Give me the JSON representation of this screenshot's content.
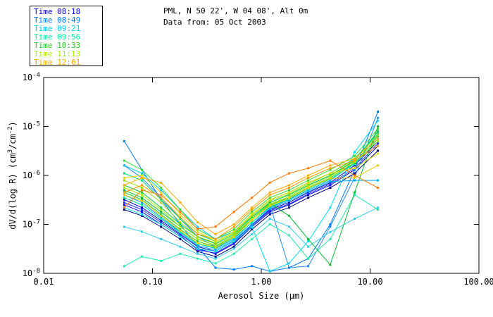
{
  "header": {},
  "chart_data": {
    "type": "line",
    "title": "PML, N 50 22', W 04 08', Alt 0m",
    "subtitle": "Data from: 05 Oct 2003",
    "xlabel": "Aerosol Size (μm)",
    "ylabel_parts": [
      {
        "t": "dV/d(log R) (cm"
      },
      {
        "sup": "3"
      },
      {
        "t": "/cm"
      },
      {
        "sup": "-2"
      },
      {
        "t": ")"
      }
    ],
    "xlim": [
      0.01,
      100
    ],
    "ylim": [
      1e-08,
      0.0001
    ],
    "x_scale": "log",
    "y_scale": "log",
    "grid": false,
    "x_ticks": [
      {
        "value": 0.01,
        "label": "0.01"
      },
      {
        "value": 0.1,
        "label": "0.10"
      },
      {
        "value": 1.0,
        "label": "1.00"
      },
      {
        "value": 10.0,
        "label": "10.00"
      },
      {
        "value": 100.0,
        "label": "100.00"
      }
    ],
    "y_tick_exponents": [
      -4,
      -5,
      -6,
      -7,
      -8
    ],
    "legend": {
      "position": "top-left",
      "items": [
        {
          "label": "Time 08:18",
          "color": "#0000EE"
        },
        {
          "label": "Time 08:49",
          "color": "#0077FF"
        },
        {
          "label": "Time 09:21",
          "color": "#00CCFF"
        },
        {
          "label": "Time 09:56",
          "color": "#00EE99"
        },
        {
          "label": "Time 10:33",
          "color": "#22CC22"
        },
        {
          "label": "Time 11:13",
          "color": "#AAEE00"
        },
        {
          "label": "Time 12:01",
          "color": "#FFAA00"
        }
      ]
    },
    "x": [
      0.055,
      0.08,
      0.12,
      0.18,
      0.26,
      0.38,
      0.56,
      0.82,
      1.2,
      1.8,
      2.7,
      4.3,
      7.2,
      11.8
    ],
    "series": [
      {
        "time": "08:18",
        "color": "#0000EE",
        "values": [
          2.5e-07,
          1.8e-07,
          1e-07,
          5.6e-08,
          3.2e-08,
          2.5e-08,
          4e-08,
          8.9e-08,
          1.8e-07,
          2.5e-07,
          4e-07,
          6.3e-07,
          1.3e-06,
          4e-06
        ]
      },
      {
        "time": "08:18",
        "color": "#0000BB",
        "values": [
          3.2e-07,
          2.2e-07,
          1.2e-07,
          6.3e-08,
          3.5e-08,
          2.8e-08,
          4.5e-08,
          1e-07,
          2e-07,
          2.8e-07,
          4.5e-07,
          7.1e-07,
          1.6e-06,
          5e-06
        ]
      },
      {
        "time": "08:18",
        "color": "#000080",
        "values": [
          2e-07,
          1.5e-07,
          8.9e-08,
          5e-08,
          2.8e-08,
          2.2e-08,
          3.5e-08,
          7.9e-08,
          1.6e-07,
          2.2e-07,
          3.5e-07,
          5.6e-07,
          1.1e-06,
          3.2e-06
        ]
      },
      {
        "time": "08:18",
        "color": "#2233EE",
        "values": [
          2.8e-07,
          2e-07,
          1.1e-07,
          6e-08,
          3e-08,
          2.6e-08,
          4.2e-08,
          9.5e-08,
          1.9e-07,
          2.6e-07,
          4.2e-07,
          6.7e-07,
          1.4e-06,
          4.5e-06
        ]
      },
      {
        "time": "08:49",
        "color": "#0077FF",
        "values": [
          5e-06,
          1.3e-06,
          3.2e-07,
          1e-07,
          3.5e-08,
          1.3e-08,
          1.2e-08,
          1.4e-08,
          1.1e-08,
          1.3e-08,
          2e-08,
          1e-07,
          1.3e-06,
          2e-05
        ]
      },
      {
        "time": "08:49",
        "color": "#0099FF",
        "values": [
          4e-07,
          2.8e-07,
          1.4e-07,
          7.1e-08,
          4e-08,
          3.2e-08,
          5e-08,
          1.1e-07,
          2.2e-07,
          3.2e-07,
          5e-07,
          7.9e-07,
          1.8e-06,
          6.3e-06
        ]
      },
      {
        "time": "08:49",
        "color": "#2288EE",
        "values": [
          1.6e-06,
          8.9e-07,
          3.5e-07,
          1.3e-07,
          5.6e-08,
          3.5e-08,
          5.6e-08,
          1.3e-07,
          2.5e-07,
          1.3e-08,
          1.4e-08,
          9e-08,
          9e-07,
          1.5e-05
        ]
      },
      {
        "time": "08:49",
        "color": "#00AAFF",
        "values": [
          3.5e-07,
          2.5e-07,
          1.3e-07,
          6.7e-08,
          3.7e-08,
          3e-08,
          4.7e-08,
          1e-07,
          2.1e-07,
          3e-07,
          4.7e-07,
          7.5e-07,
          7.9e-07,
          7.9e-07
        ]
      },
      {
        "time": "09:21",
        "color": "#00CCFF",
        "values": [
          1.6e-06,
          1.1e-06,
          5e-07,
          2e-07,
          8.9e-08,
          5e-08,
          7.1e-08,
          1.4e-07,
          2.8e-07,
          4e-07,
          6.3e-07,
          1e-06,
          2e-06,
          7.9e-06
        ]
      },
      {
        "time": "09:21",
        "color": "#00DDEE",
        "values": [
          2.2e-07,
          1.6e-07,
          1e-07,
          5.6e-08,
          3.2e-08,
          2.8e-08,
          4.5e-08,
          8.9e-08,
          1.1e-08,
          1.6e-08,
          4.5e-08,
          2.2e-07,
          3e-06,
          1.3e-05
        ]
      },
      {
        "time": "09:21",
        "color": "#33CCEE",
        "values": [
          8.9e-08,
          7.1e-08,
          5e-08,
          3.5e-08,
          2.5e-08,
          2e-08,
          3.2e-08,
          6.3e-08,
          1.3e-07,
          9e-08,
          3.5e-08,
          7e-08,
          1.3e-07,
          2.2e-07
        ]
      },
      {
        "time": "09:56",
        "color": "#00EE99",
        "values": [
          3.5e-07,
          2.5e-07,
          1.3e-07,
          7e-08,
          4e-08,
          3.3e-08,
          5.3e-08,
          1.1e-07,
          2.3e-07,
          3.3e-07,
          5.3e-07,
          8.4e-07,
          1.7e-06,
          5.6e-06
        ]
      },
      {
        "time": "09:56",
        "color": "#00DD77",
        "values": [
          1.1e-06,
          7.9e-07,
          3.2e-07,
          1.3e-07,
          6.3e-08,
          4.5e-08,
          7.1e-08,
          1.6e-07,
          3.2e-07,
          4.5e-07,
          7.1e-07,
          1.1e-06,
          2.2e-06,
          7.1e-06
        ]
      },
      {
        "time": "09:56",
        "color": "#22EEAA",
        "values": [
          1.4e-08,
          2.2e-08,
          1.8e-08,
          2.5e-08,
          2e-08,
          1.6e-08,
          2.5e-08,
          5e-08,
          1e-07,
          6e-08,
          2e-08,
          5e-08,
          4e-07,
          2e-07
        ]
      },
      {
        "time": "10:33",
        "color": "#22CC22",
        "values": [
          4.5e-07,
          3.2e-07,
          1.6e-07,
          7.9e-08,
          4.5e-08,
          3.5e-08,
          5.6e-08,
          1.3e-07,
          2.5e-07,
          3.5e-07,
          5.6e-07,
          8.9e-07,
          1.8e-06,
          6.3e-06
        ]
      },
      {
        "time": "10:33",
        "color": "#00CC44",
        "values": [
          6.3e-07,
          4.5e-07,
          2.2e-07,
          1e-07,
          5.6e-08,
          4e-08,
          6.3e-08,
          1.4e-07,
          2.8e-07,
          4e-07,
          6.3e-07,
          1e-06,
          2e-06,
          7.9e-06
        ]
      },
      {
        "time": "10:33",
        "color": "#33DD33",
        "values": [
          2e-06,
          1.3e-06,
          5.6e-07,
          2e-07,
          7.9e-08,
          5e-08,
          7.9e-08,
          1.8e-07,
          3.5e-07,
          5e-07,
          7.9e-07,
          1.3e-06,
          2.5e-06,
          8.9e-06
        ]
      },
      {
        "time": "10:33",
        "color": "#00BB33",
        "values": [
          5e-07,
          3.5e-07,
          1.8e-07,
          8.9e-08,
          5e-08,
          3.7e-08,
          6e-08,
          1.3e-07,
          2.7e-07,
          1.5e-07,
          5e-08,
          1.5e-08,
          4.5e-07,
          1e-05
        ]
      },
      {
        "time": "11:13",
        "color": "#AAEE00",
        "values": [
          5.6e-07,
          4e-07,
          2e-07,
          8.9e-08,
          5e-08,
          3.7e-08,
          6e-08,
          1.3e-07,
          2.6e-07,
          3.7e-07,
          6e-07,
          9.5e-07,
          1.9e-06,
          5e-06
        ]
      },
      {
        "time": "11:13",
        "color": "#99DD00",
        "values": [
          7.9e-07,
          5.6e-07,
          2.8e-07,
          1.1e-07,
          5.6e-08,
          4.2e-08,
          6.7e-08,
          1.5e-07,
          3e-07,
          4.2e-07,
          6.7e-07,
          1.1e-06,
          2.1e-06,
          6.7e-06
        ]
      },
      {
        "time": "11:13",
        "color": "#DDDD00",
        "values": [
          8.9e-07,
          1e-06,
          4.5e-07,
          1.6e-07,
          7.1e-08,
          4.5e-08,
          7.1e-08,
          1.6e-07,
          3.2e-07,
          4.5e-07,
          7.1e-07,
          1.1e-06,
          1.4e-06,
          2.8e-06
        ]
      },
      {
        "time": "11:13",
        "color": "#EECC00",
        "values": [
          4e-07,
          3e-07,
          1.5e-07,
          7.5e-08,
          4.2e-08,
          3.4e-08,
          5.5e-08,
          1.2e-07,
          2.4e-07,
          3.4e-07,
          5.5e-07,
          8.7e-07,
          9e-07,
          1.6e-06
        ]
      },
      {
        "time": "12:01",
        "color": "#FFAA00",
        "values": [
          6.3e-07,
          8.9e-07,
          7.1e-07,
          2.8e-07,
          1.1e-07,
          6.3e-08,
          1e-07,
          2.2e-07,
          4.5e-07,
          6.3e-07,
          1e-06,
          1.6e-06,
          2.2e-06,
          5.6e-06
        ]
      },
      {
        "time": "12:01",
        "color": "#FF7700",
        "values": [
          2.2e-07,
          5e-07,
          4e-07,
          1.8e-07,
          8e-08,
          9e-08,
          1.8e-07,
          3.5e-07,
          7.1e-07,
          1.1e-06,
          1.4e-06,
          2e-06,
          1e-06,
          5.6e-07
        ]
      },
      {
        "time": "12:01",
        "color": "#FF9900",
        "values": [
          4.5e-07,
          6.3e-07,
          3.5e-07,
          1.4e-07,
          6.3e-08,
          5e-08,
          8.9e-08,
          2e-07,
          4e-07,
          5.6e-07,
          8.9e-07,
          1.4e-06,
          2e-06,
          4e-06
        ]
      }
    ],
    "plot_frame_color": "#000000",
    "background_color": "#ffffff"
  }
}
